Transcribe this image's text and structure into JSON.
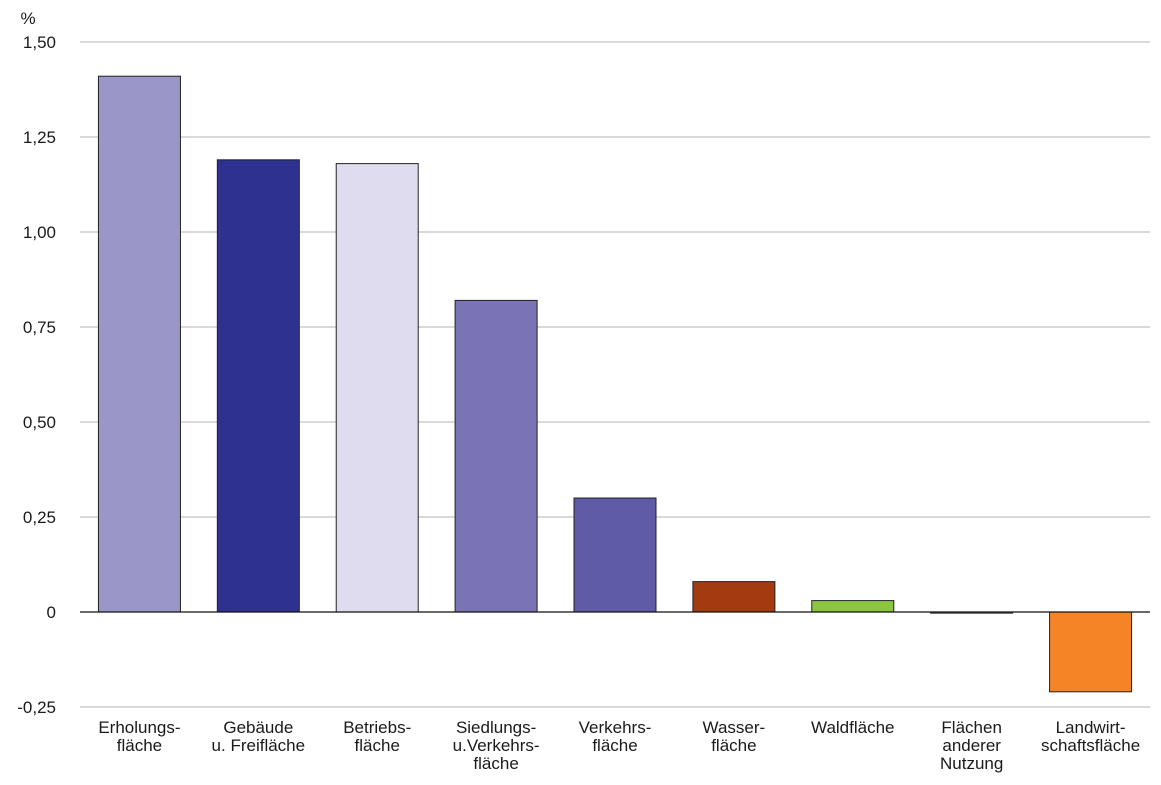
{
  "chart_data": {
    "type": "bar",
    "ylabel": "%",
    "ylim": [
      -0.25,
      1.5
    ],
    "yticks": [
      "1,50",
      "1,25",
      "1,00",
      "0,75",
      "0,50",
      "0,25",
      "0",
      "-0,25"
    ],
    "ytick_values": [
      1.5,
      1.25,
      1.0,
      0.75,
      0.5,
      0.25,
      0,
      -0.25
    ],
    "grid": true,
    "legend": "none",
    "categories": [
      [
        "Erholungs-",
        "fläche"
      ],
      [
        "Gebäude",
        "u. Freifläche"
      ],
      [
        "Betriebs-",
        "fläche"
      ],
      [
        "Siedlungs-",
        "u.Verkehrs-",
        "fläche"
      ],
      [
        "Verkehrs-",
        "fläche"
      ],
      [
        "Wasser-",
        "fläche"
      ],
      [
        "Waldfläche"
      ],
      [
        "Flächen",
        "anderer",
        "Nutzung"
      ],
      [
        "Landwirt-",
        "schaftsfläche"
      ]
    ],
    "values": [
      1.41,
      1.19,
      1.18,
      0.82,
      0.3,
      0.08,
      0.03,
      -0.003,
      -0.21
    ],
    "colors": [
      "#9b96c8",
      "#2e3190",
      "#dedcee",
      "#7a74b4",
      "#5f5ba6",
      "#a33a10",
      "#8cc63f",
      "#b7b0d8",
      "#f58426"
    ]
  }
}
